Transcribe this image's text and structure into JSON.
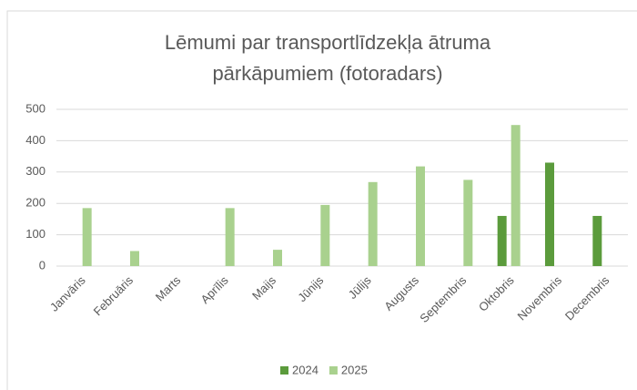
{
  "chart_data": {
    "type": "bar",
    "title": "Lēmumi par transportlīdzekļa ātruma pārkāpumiem (fotoradars)",
    "categories": [
      "Janvāris",
      "Februāris",
      "Marts",
      "Aprīlis",
      "Maijs",
      "Jūnijs",
      "Jūlijs",
      "Augusts",
      "Septembris",
      "Oktobris",
      "Novembris",
      "Decembris"
    ],
    "series": [
      {
        "name": "2024",
        "color": "#5b9b3c",
        "values": [
          null,
          null,
          null,
          null,
          null,
          null,
          null,
          null,
          null,
          160,
          330,
          160
        ]
      },
      {
        "name": "2025",
        "color": "#a9d18e",
        "values": [
          185,
          48,
          null,
          185,
          52,
          195,
          268,
          318,
          275,
          450,
          null,
          null
        ]
      }
    ],
    "ylim": [
      0,
      500
    ],
    "yticks": [
      0,
      100,
      200,
      300,
      400,
      500
    ],
    "grid": true,
    "legend": "bottom"
  }
}
